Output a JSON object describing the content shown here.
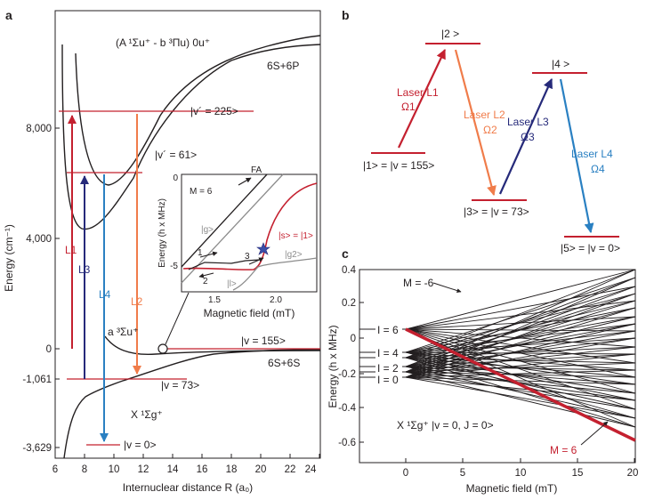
{
  "colors": {
    "red": "#c4202f",
    "orange": "#f07c4a",
    "navy": "#262a7a",
    "blue": "#2a80c2",
    "gray": "#8c8c8c",
    "black": "#231f20"
  },
  "panel_a": {
    "letter": "a",
    "y_axis_label": "Energy (cm⁻¹)",
    "x_axis_label": "Internuclear distance R (a₀)",
    "y_ticks": [
      "8,000",
      "4,000",
      "0",
      "-1,061",
      "-3,629"
    ],
    "x_ticks": [
      "6",
      "8",
      "10",
      "12",
      "14",
      "16",
      "18",
      "20",
      "22",
      "24"
    ],
    "top_state": "(A ¹Σu⁺ - b ³Πu) 0u⁺",
    "asymptote_6s6p": "6S+6P",
    "asymptote_6s6s": "6S+6S",
    "level_v225": "|v´ = 225>",
    "level_v61": "|v´ = 61>",
    "level_v155": "|v = 155>",
    "level_v73": "|v = 73>",
    "level_v0": "|v = 0>",
    "triplet_state": "a ³Σu⁺",
    "ground_state": "X ¹Σg⁺",
    "arrow_labels": [
      "L1",
      "L3",
      "L4",
      "L2"
    ],
    "inset": {
      "y_label": "Energy (h x MHz)",
      "x_label": "Magnetic field (mT)",
      "x_ticks": [
        "1.5",
        "2.0"
      ],
      "y_ticks": [
        "0",
        "-5"
      ],
      "m_label": "M = 6",
      "fa_label": "FA",
      "g_label": "|g>",
      "s_label": "|s> = |1>",
      "g2_label": "|g2>",
      "l_label": "|l>",
      "path_numbers": [
        "1",
        "2",
        "3"
      ]
    }
  },
  "panel_b": {
    "letter": "b",
    "levels": [
      "|1> = |v = 155>",
      "|2 >",
      "|3> = |v = 73>",
      "|4 >",
      "|5> = |v = 0>"
    ],
    "lasers": [
      {
        "name": "Laser L1",
        "rabi": "Ω1"
      },
      {
        "name": "Laser L2",
        "rabi": "Ω2"
      },
      {
        "name": "Laser L3",
        "rabi": "Ω3"
      },
      {
        "name": "Laser L4",
        "rabi": "Ω4"
      }
    ]
  },
  "panel_c": {
    "letter": "c",
    "y_axis_label": "Energy (h x MHz)",
    "x_axis_label": "Magnetic field (mT)",
    "y_ticks": [
      "0.4",
      "0.2",
      "0",
      "-0.2",
      "-0.4",
      "-0.6"
    ],
    "x_ticks": [
      "0",
      "5",
      "10",
      "15",
      "20"
    ],
    "m_minus_label": "M = -6",
    "m_plus_label": "M = 6",
    "i_labels": [
      "I = 6",
      "I = 4",
      "I = 2",
      "I = 0"
    ],
    "state_label": "X ¹Σg⁺ |v = 0, J = 0>"
  }
}
